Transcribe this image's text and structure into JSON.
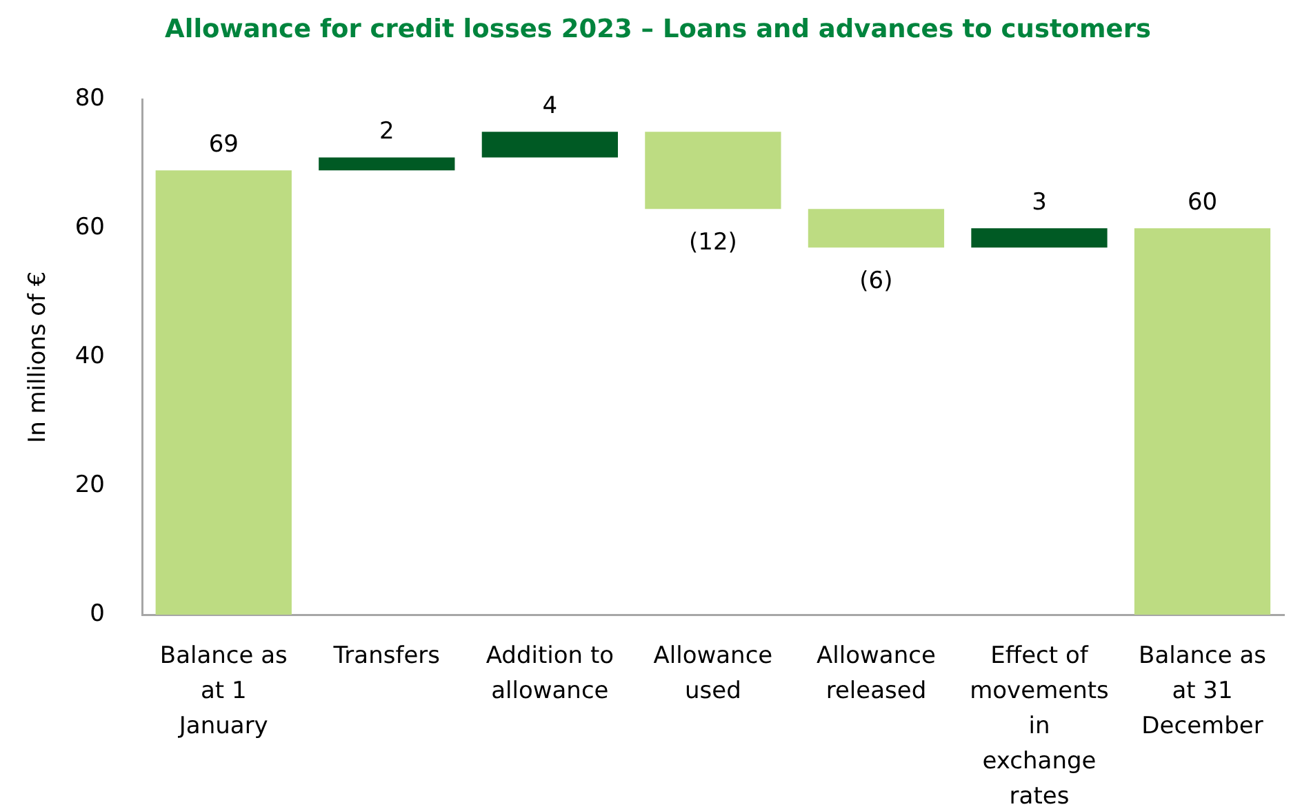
{
  "chart_data": {
    "type": "bar",
    "title": "Allowance for credit losses 2023 – Loans and advances to customers",
    "ylabel": "In millions of €",
    "categories": [
      "Balance as at 1 January",
      "Transfers",
      "Addition to allowance",
      "Allowance used",
      "Allowance released",
      "Effect of movements in exchange rates",
      "Balance as at 31 December"
    ],
    "values": [
      69,
      2,
      4,
      -12,
      -6,
      3,
      60
    ],
    "base": [
      0,
      69,
      71,
      75,
      63,
      57,
      0
    ],
    "colors": [
      "#bddc82",
      "#005a24",
      "#005a24",
      "#bddc82",
      "#bddc82",
      "#005a24",
      "#bddc82"
    ],
    "value_labels": [
      "69",
      "2",
      "4",
      "(12)",
      "(6)",
      "3",
      "60"
    ],
    "ylim": [
      0,
      80
    ],
    "yticks": [
      0,
      20,
      40,
      60,
      80
    ]
  }
}
